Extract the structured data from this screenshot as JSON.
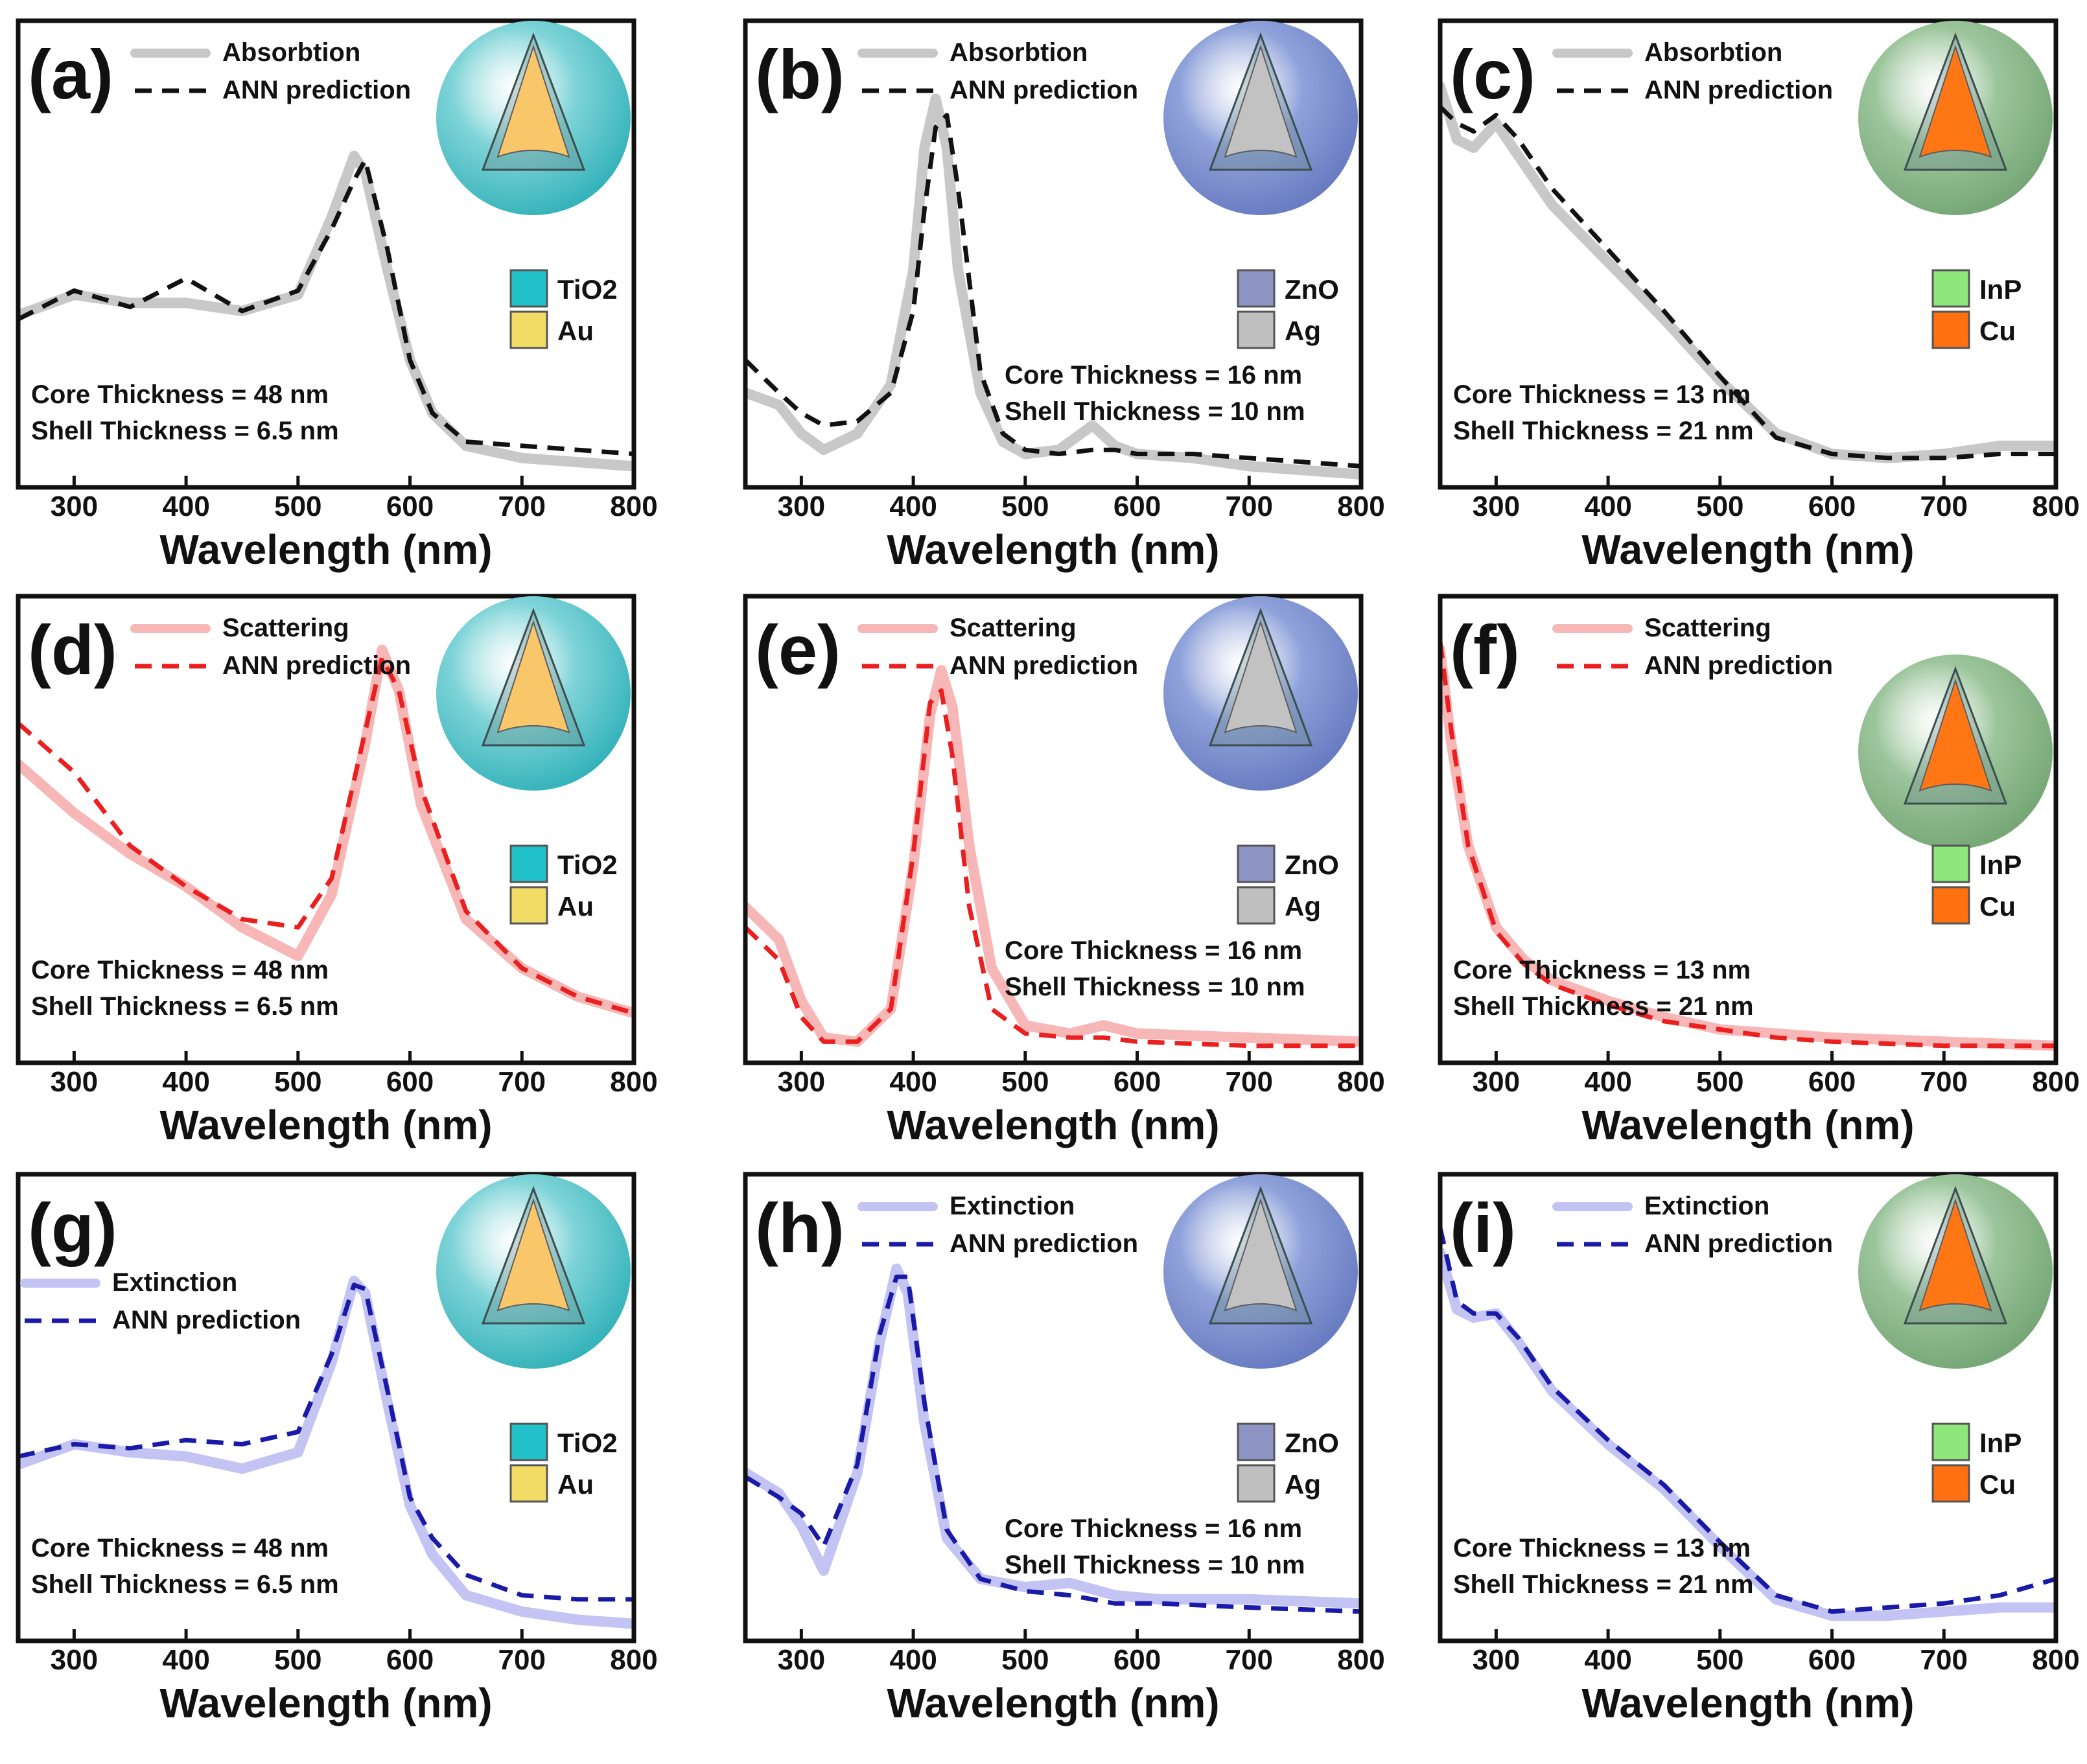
{
  "figure": {
    "xlabel": "Wavelength (nm)",
    "ticks": [
      "300",
      "400",
      "500",
      "600",
      "700",
      "800"
    ]
  },
  "colors": {
    "absorption_true": "#c8c8c8",
    "absorption_pred": "#111111",
    "scattering_true": "#f8b7b7",
    "scattering_pred": "#ea1f1f",
    "extinction_true": "#c3c3f4",
    "extinction_pred": "#1a1aa8",
    "TiO2": "#20c1c8",
    "Au": "#f2dc66",
    "ZnO": "#8e94c4",
    "Ag": "#c0c0c0",
    "InP": "#8fe67a",
    "Cu": "#ff7010",
    "shell_TiO2_Au": "#7fd4d8",
    "core_TiO2_Au": "#f9c66a",
    "shell_ZnO_Ag": "#8fa2da",
    "core_ZnO_Ag": "#c2c2c2",
    "shell_InP_Cu": "#9cc59c",
    "core_InP_Cu": "#ff7614"
  },
  "chart_data": [
    {
      "panel": "(a)",
      "type": "line",
      "xlabel": "Wavelength (nm)",
      "xlim": [
        250,
        800
      ],
      "ylim": [
        0,
        1
      ],
      "x": [
        250,
        300,
        350,
        400,
        450,
        500,
        530,
        550,
        560,
        580,
        600,
        620,
        650,
        700,
        750,
        800
      ],
      "series": [
        {
          "name": "Absorbtion",
          "values": [
            0.39,
            0.44,
            0.42,
            0.42,
            0.4,
            0.44,
            0.63,
            0.78,
            0.74,
            0.5,
            0.28,
            0.15,
            0.07,
            0.04,
            0.03,
            0.02
          ]
        },
        {
          "name": "ANN prediction",
          "values": [
            0.38,
            0.45,
            0.41,
            0.48,
            0.4,
            0.45,
            0.6,
            0.72,
            0.77,
            0.55,
            0.28,
            0.15,
            0.08,
            0.07,
            0.06,
            0.05
          ]
        }
      ],
      "legend": [
        "Absorbtion",
        "ANN prediction"
      ],
      "materials": [
        "TiO2",
        "Au"
      ],
      "annotations": [
        "Core Thickness = 48 nm",
        "Shell Thickness = 6.5 nm"
      ],
      "xticks": [
        "300",
        "400",
        "500",
        "600",
        "700",
        "800"
      ]
    },
    {
      "panel": "(b)",
      "type": "line",
      "xlabel": "Wavelength (nm)",
      "xlim": [
        250,
        800
      ],
      "ylim": [
        0,
        1
      ],
      "x": [
        250,
        280,
        300,
        320,
        350,
        380,
        400,
        410,
        420,
        430,
        440,
        460,
        480,
        500,
        530,
        560,
        580,
        600,
        650,
        700,
        750,
        800
      ],
      "series": [
        {
          "name": "Absorbtion",
          "values": [
            0.2,
            0.17,
            0.1,
            0.06,
            0.1,
            0.22,
            0.5,
            0.8,
            0.92,
            0.8,
            0.5,
            0.2,
            0.08,
            0.05,
            0.06,
            0.12,
            0.07,
            0.05,
            0.04,
            0.02,
            0.01,
            0.0
          ]
        },
        {
          "name": "ANN prediction",
          "values": [
            0.28,
            0.2,
            0.15,
            0.12,
            0.13,
            0.2,
            0.4,
            0.65,
            0.85,
            0.88,
            0.7,
            0.25,
            0.1,
            0.06,
            0.05,
            0.06,
            0.06,
            0.05,
            0.05,
            0.04,
            0.03,
            0.02
          ]
        }
      ],
      "legend": [
        "Absorbtion",
        "ANN prediction"
      ],
      "materials": [
        "ZnO",
        "Ag"
      ],
      "annotations": [
        "Core Thickness = 16 nm",
        "Shell Thickness = 10 nm"
      ],
      "xticks": [
        "300",
        "400",
        "500",
        "600",
        "700",
        "800"
      ]
    },
    {
      "panel": "(c)",
      "type": "line",
      "xlabel": "Wavelength (nm)",
      "xlim": [
        250,
        800
      ],
      "ylim": [
        0,
        1
      ],
      "x": [
        250,
        265,
        280,
        300,
        320,
        350,
        400,
        450,
        500,
        550,
        600,
        650,
        700,
        750,
        800
      ],
      "series": [
        {
          "name": "Absorbtion",
          "values": [
            0.95,
            0.82,
            0.8,
            0.86,
            0.78,
            0.66,
            0.52,
            0.38,
            0.23,
            0.1,
            0.05,
            0.04,
            0.05,
            0.07,
            0.07
          ]
        },
        {
          "name": "ANN prediction",
          "values": [
            0.9,
            0.86,
            0.84,
            0.88,
            0.82,
            0.7,
            0.55,
            0.4,
            0.24,
            0.09,
            0.05,
            0.04,
            0.04,
            0.05,
            0.05
          ]
        }
      ],
      "legend": [
        "Absorbtion",
        "ANN prediction"
      ],
      "materials": [
        "InP",
        "Cu"
      ],
      "annotations": [
        "Core Thickness = 13 nm",
        "Shell Thickness = 21 nm"
      ],
      "xticks": [
        "300",
        "400",
        "500",
        "600",
        "700",
        "800"
      ]
    },
    {
      "panel": "(d)",
      "type": "line",
      "xlabel": "Wavelength (nm)",
      "xlim": [
        250,
        800
      ],
      "ylim": [
        0,
        1
      ],
      "x": [
        250,
        300,
        350,
        400,
        450,
        500,
        530,
        560,
        575,
        590,
        610,
        650,
        700,
        750,
        800
      ],
      "series": [
        {
          "name": "Scattering",
          "values": [
            0.7,
            0.58,
            0.48,
            0.4,
            0.3,
            0.23,
            0.38,
            0.75,
            0.98,
            0.88,
            0.6,
            0.32,
            0.2,
            0.13,
            0.09
          ]
        },
        {
          "name": "ANN prediction",
          "values": [
            0.8,
            0.68,
            0.5,
            0.4,
            0.32,
            0.3,
            0.42,
            0.78,
            0.96,
            0.88,
            0.64,
            0.34,
            0.2,
            0.13,
            0.09
          ]
        }
      ],
      "legend": [
        "Scattering",
        "ANN prediction"
      ],
      "materials": [
        "TiO2",
        "Au"
      ],
      "annotations": [
        "Core Thickness = 48 nm",
        "Shell Thickness = 6.5 nm"
      ],
      "xticks": [
        "300",
        "400",
        "500",
        "600",
        "700",
        "800"
      ]
    },
    {
      "panel": "(e)",
      "type": "line",
      "xlabel": "Wavelength (nm)",
      "xlim": [
        250,
        800
      ],
      "ylim": [
        0,
        1
      ],
      "x": [
        250,
        280,
        300,
        320,
        350,
        380,
        400,
        415,
        425,
        435,
        450,
        470,
        500,
        540,
        570,
        600,
        700,
        800
      ],
      "series": [
        {
          "name": "Scattering",
          "values": [
            0.35,
            0.27,
            0.12,
            0.03,
            0.02,
            0.1,
            0.45,
            0.82,
            0.93,
            0.84,
            0.5,
            0.2,
            0.06,
            0.04,
            0.06,
            0.04,
            0.03,
            0.02
          ]
        },
        {
          "name": "ANN prediction",
          "values": [
            0.3,
            0.22,
            0.08,
            0.02,
            0.02,
            0.1,
            0.48,
            0.85,
            0.88,
            0.72,
            0.35,
            0.1,
            0.04,
            0.03,
            0.03,
            0.02,
            0.01,
            0.01
          ]
        }
      ],
      "legend": [
        "Scattering",
        "ANN prediction"
      ],
      "materials": [
        "ZnO",
        "Ag"
      ],
      "annotations": [
        "Core Thickness = 16 nm",
        "Shell Thickness = 10 nm"
      ],
      "xticks": [
        "300",
        "400",
        "500",
        "600",
        "700",
        "800"
      ]
    },
    {
      "panel": "(f)",
      "type": "line",
      "xlabel": "Wavelength (nm)",
      "xlim": [
        250,
        800
      ],
      "ylim": [
        0,
        1
      ],
      "x": [
        250,
        260,
        275,
        300,
        325,
        350,
        400,
        450,
        500,
        550,
        600,
        700,
        800
      ],
      "series": [
        {
          "name": "Scattering",
          "values": [
            0.98,
            0.75,
            0.5,
            0.3,
            0.22,
            0.17,
            0.12,
            0.08,
            0.05,
            0.04,
            0.03,
            0.02,
            0.01
          ]
        },
        {
          "name": "ANN prediction",
          "values": [
            1.0,
            0.78,
            0.5,
            0.29,
            0.21,
            0.16,
            0.11,
            0.07,
            0.05,
            0.03,
            0.02,
            0.01,
            0.01
          ]
        }
      ],
      "legend": [
        "Scattering",
        "ANN prediction"
      ],
      "materials": [
        "InP",
        "Cu"
      ],
      "annotations": [
        "Core Thickness = 13 nm",
        "Shell Thickness = 21 nm"
      ],
      "xticks": [
        "300",
        "400",
        "500",
        "600",
        "700",
        "800"
      ]
    },
    {
      "panel": "(g)",
      "type": "line",
      "xlabel": "Wavelength (nm)",
      "xlim": [
        250,
        800
      ],
      "ylim": [
        0,
        1
      ],
      "x": [
        250,
        300,
        350,
        400,
        450,
        500,
        530,
        550,
        560,
        580,
        600,
        620,
        650,
        700,
        750,
        800
      ],
      "series": [
        {
          "name": "Extinction",
          "values": [
            0.4,
            0.45,
            0.43,
            0.42,
            0.39,
            0.43,
            0.65,
            0.85,
            0.82,
            0.55,
            0.3,
            0.18,
            0.08,
            0.04,
            0.02,
            0.01
          ]
        },
        {
          "name": "ANN prediction",
          "values": [
            0.42,
            0.45,
            0.44,
            0.46,
            0.45,
            0.48,
            0.67,
            0.84,
            0.83,
            0.58,
            0.32,
            0.22,
            0.13,
            0.08,
            0.07,
            0.07
          ]
        }
      ],
      "legend": [
        "Extinction",
        "ANN prediction"
      ],
      "materials": [
        "TiO2",
        "Au"
      ],
      "annotations": [
        "Core Thickness = 48 nm",
        "Shell Thickness = 6.5 nm"
      ],
      "xticks": [
        "300",
        "400",
        "500",
        "600",
        "700",
        "800"
      ]
    },
    {
      "panel": "(h)",
      "type": "line",
      "xlabel": "Wavelength (nm)",
      "xlim": [
        250,
        800
      ],
      "ylim": [
        0,
        1
      ],
      "x": [
        250,
        280,
        300,
        320,
        350,
        370,
        385,
        395,
        410,
        430,
        460,
        500,
        540,
        580,
        620,
        700,
        800
      ],
      "series": [
        {
          "name": "Extinction",
          "values": [
            0.38,
            0.33,
            0.25,
            0.14,
            0.38,
            0.7,
            0.88,
            0.82,
            0.5,
            0.22,
            0.12,
            0.1,
            0.11,
            0.08,
            0.07,
            0.07,
            0.06
          ]
        },
        {
          "name": "ANN prediction",
          "values": [
            0.37,
            0.32,
            0.28,
            0.2,
            0.4,
            0.72,
            0.86,
            0.86,
            0.55,
            0.24,
            0.12,
            0.09,
            0.08,
            0.06,
            0.06,
            0.05,
            0.04
          ]
        }
      ],
      "legend": [
        "Extinction",
        "ANN prediction"
      ],
      "materials": [
        "ZnO",
        "Ag"
      ],
      "annotations": [
        "Core Thickness = 16 nm",
        "Shell Thickness = 10 nm"
      ],
      "xticks": [
        "300",
        "400",
        "500",
        "600",
        "700",
        "800"
      ]
    },
    {
      "panel": "(i)",
      "type": "line",
      "xlabel": "Wavelength (nm)",
      "xlim": [
        250,
        800
      ],
      "ylim": [
        0,
        1
      ],
      "x": [
        250,
        265,
        280,
        300,
        320,
        350,
        400,
        450,
        500,
        550,
        600,
        650,
        700,
        750,
        800
      ],
      "series": [
        {
          "name": "Extinction",
          "values": [
            0.92,
            0.78,
            0.76,
            0.77,
            0.7,
            0.58,
            0.45,
            0.34,
            0.2,
            0.07,
            0.03,
            0.03,
            0.04,
            0.05,
            0.05
          ]
        },
        {
          "name": "ANN prediction",
          "values": [
            0.98,
            0.8,
            0.77,
            0.77,
            0.71,
            0.59,
            0.46,
            0.35,
            0.21,
            0.08,
            0.04,
            0.05,
            0.06,
            0.08,
            0.12
          ]
        }
      ],
      "legend": [
        "Extinction",
        "ANN prediction"
      ],
      "materials": [
        "InP",
        "Cu"
      ],
      "annotations": [
        "Core Thickness = 13 nm",
        "Shell Thickness = 21 nm"
      ],
      "xticks": [
        "300",
        "400",
        "500",
        "600",
        "700",
        "800"
      ]
    }
  ]
}
